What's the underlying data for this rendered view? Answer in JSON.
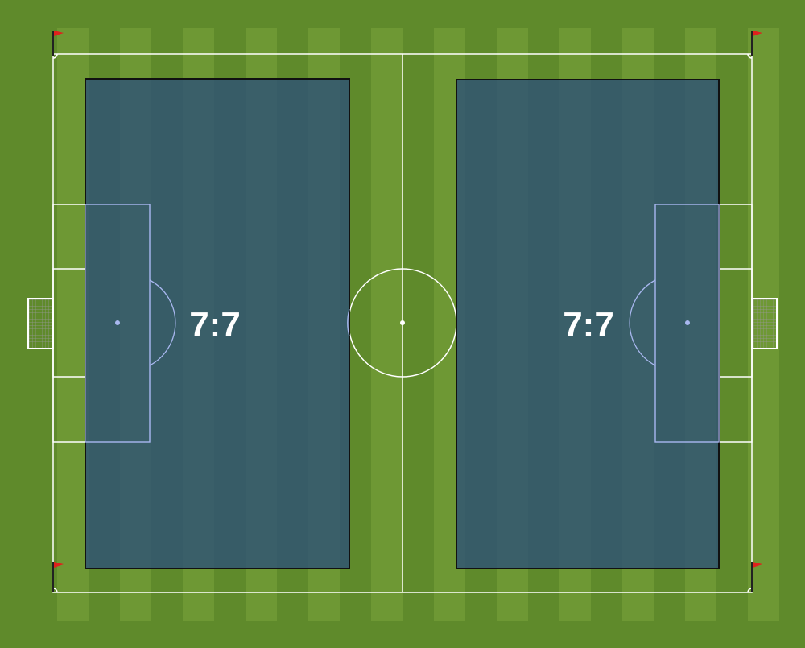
{
  "diagram": {
    "type": "football-pitch-drill",
    "colors": {
      "grass_dark": "#5f8a2b",
      "grass_light": "#6e9834",
      "lines": "#ffffff",
      "zone_fill": "#2c4f79",
      "zone_border": "#111111",
      "zone_markings": "#a9b8f0",
      "corner_flag": "#e0201c"
    },
    "zones": [
      {
        "id": "left-zone",
        "label": "7:7"
      },
      {
        "id": "right-zone",
        "label": "7:7"
      }
    ]
  }
}
